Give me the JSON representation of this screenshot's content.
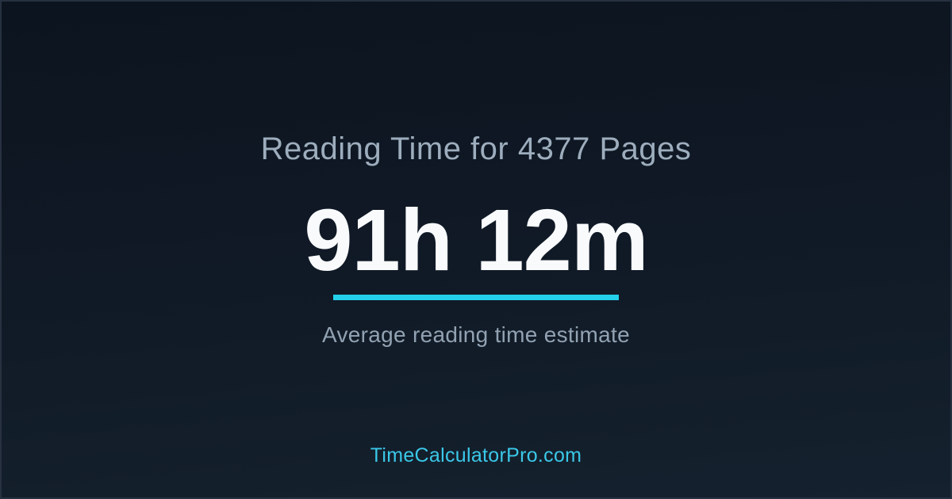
{
  "card": {
    "title": "Reading Time for 4377 Pages",
    "value": "91h 12m",
    "subtitle": "Average reading time estimate",
    "footer": "TimeCalculatorPro.com"
  },
  "colors": {
    "background_top": "#0c141f",
    "background_bottom": "#15212e",
    "border": "#273140",
    "title_text": "#9dadbd",
    "value_text": "#f8fafc",
    "accent_line": "#24d0e9",
    "subtitle_text": "#92a2b2",
    "footer_text": "#3ac8e8"
  }
}
